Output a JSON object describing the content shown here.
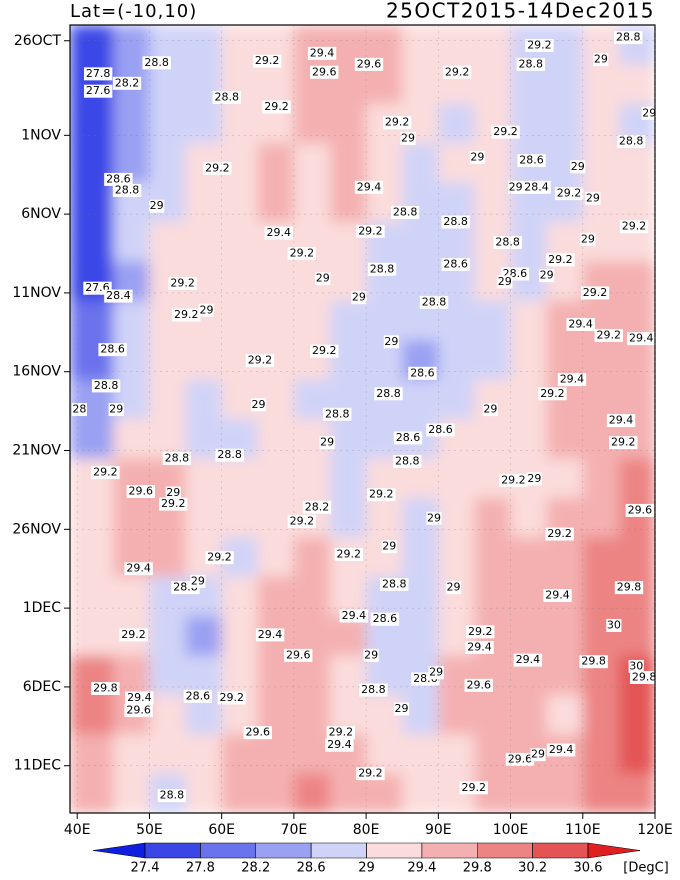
{
  "chart_data": {
    "type": "heatmap",
    "title_left": "Lat=(-10,10)",
    "title_right": "25OCT2015-14Dec2015",
    "xlim": [
      39,
      120
    ],
    "xticks": [
      {
        "value": 40,
        "label": "40E"
      },
      {
        "value": 50,
        "label": "50E"
      },
      {
        "value": 60,
        "label": "60E"
      },
      {
        "value": 70,
        "label": "70E"
      },
      {
        "value": 80,
        "label": "80E"
      },
      {
        "value": 90,
        "label": "90E"
      },
      {
        "value": 100,
        "label": "100E"
      },
      {
        "value": 110,
        "label": "110E"
      },
      {
        "value": 120,
        "label": "120E"
      }
    ],
    "ylim": [
      0,
      50
    ],
    "y_inverted": true,
    "yticks": [
      {
        "value": 1,
        "label": "26OCT"
      },
      {
        "value": 7,
        "label": "1NOV"
      },
      {
        "value": 12,
        "label": "6NOV"
      },
      {
        "value": 17,
        "label": "11NOV"
      },
      {
        "value": 22,
        "label": "16NOV"
      },
      {
        "value": 27,
        "label": "21NOV"
      },
      {
        "value": 32,
        "label": "26NOV"
      },
      {
        "value": 37,
        "label": "1DEC"
      },
      {
        "value": 42,
        "label": "6DEC"
      },
      {
        "value": 47,
        "label": "11DEC"
      }
    ],
    "lon_edges": [
      39,
      45,
      50,
      55,
      60,
      65,
      70,
      75,
      80,
      85,
      90,
      95,
      100,
      105,
      110,
      115,
      120
    ],
    "day_edges": [
      0,
      2.5,
      5,
      7.5,
      10,
      12.5,
      15,
      17.5,
      20,
      22.5,
      25,
      27.5,
      30,
      32.5,
      35,
      37.5,
      40,
      42.5,
      45,
      47.5,
      50
    ],
    "values": [
      [
        27.6,
        28.2,
        28.8,
        28.8,
        29.0,
        29.2,
        29.4,
        29.6,
        29.4,
        29.2,
        29.2,
        29.0,
        28.8,
        28.6,
        29.2,
        28.8
      ],
      [
        27.6,
        28.2,
        28.6,
        28.8,
        29.0,
        29.2,
        29.4,
        29.6,
        29.4,
        29.2,
        29.0,
        29.2,
        28.8,
        28.8,
        29.0,
        29.0
      ],
      [
        27.6,
        28.4,
        28.8,
        28.9,
        29.0,
        29.2,
        29.4,
        29.6,
        29.2,
        29.0,
        28.9,
        29.2,
        28.6,
        28.8,
        29.0,
        28.8
      ],
      [
        27.6,
        28.4,
        28.8,
        29.0,
        29.2,
        29.4,
        29.2,
        29.6,
        29.2,
        28.8,
        29.0,
        29.0,
        28.6,
        28.6,
        29.2,
        29.0
      ],
      [
        27.4,
        28.6,
        28.9,
        29.0,
        29.2,
        29.4,
        29.2,
        29.4,
        29.2,
        28.8,
        28.8,
        29.0,
        28.6,
        28.8,
        29.2,
        29.2
      ],
      [
        27.6,
        28.6,
        29.0,
        29.2,
        29.0,
        29.2,
        29.2,
        29.2,
        28.8,
        28.8,
        28.6,
        29.0,
        28.6,
        29.0,
        29.2,
        29.2
      ],
      [
        27.6,
        28.4,
        29.0,
        29.2,
        29.2,
        29.0,
        29.2,
        29.0,
        28.8,
        28.8,
        28.6,
        29.0,
        28.8,
        29.2,
        29.4,
        29.4
      ],
      [
        28.0,
        28.6,
        29.0,
        29.2,
        29.0,
        29.0,
        29.2,
        28.8,
        28.8,
        28.6,
        28.6,
        28.8,
        29.0,
        29.4,
        29.6,
        29.4
      ],
      [
        28.0,
        28.8,
        29.0,
        29.2,
        29.0,
        29.2,
        29.0,
        28.8,
        28.6,
        28.4,
        28.8,
        28.8,
        29.2,
        29.4,
        29.6,
        29.4
      ],
      [
        28.2,
        28.8,
        29.0,
        28.8,
        29.0,
        29.0,
        28.8,
        28.8,
        28.6,
        28.6,
        28.8,
        29.0,
        29.2,
        29.4,
        29.4,
        29.6
      ],
      [
        28.4,
        29.2,
        29.0,
        28.8,
        28.8,
        29.0,
        29.0,
        28.6,
        28.8,
        28.8,
        29.0,
        29.2,
        29.2,
        29.4,
        29.6,
        29.6
      ],
      [
        29.0,
        29.6,
        29.4,
        29.0,
        29.0,
        29.0,
        29.2,
        28.8,
        29.0,
        29.0,
        29.2,
        29.2,
        29.0,
        29.2,
        29.6,
        29.8
      ],
      [
        29.2,
        29.6,
        29.4,
        29.0,
        29.0,
        29.2,
        29.2,
        28.8,
        29.0,
        28.8,
        29.0,
        29.4,
        29.2,
        29.4,
        29.6,
        29.8
      ],
      [
        29.2,
        29.4,
        29.6,
        29.0,
        28.8,
        29.2,
        29.4,
        29.0,
        29.0,
        28.8,
        29.0,
        29.4,
        29.6,
        29.6,
        29.8,
        29.8
      ],
      [
        29.0,
        29.2,
        28.8,
        28.6,
        29.0,
        29.4,
        29.4,
        29.2,
        28.8,
        28.8,
        29.0,
        29.4,
        29.6,
        29.6,
        30.0,
        29.8
      ],
      [
        29.2,
        29.0,
        28.6,
        28.4,
        29.0,
        29.4,
        29.6,
        29.4,
        28.8,
        28.8,
        29.2,
        29.4,
        29.6,
        29.6,
        30.0,
        30.0
      ],
      [
        29.8,
        29.4,
        28.8,
        28.6,
        29.0,
        29.4,
        29.6,
        29.2,
        28.8,
        28.8,
        29.4,
        29.6,
        29.4,
        29.6,
        30.0,
        30.2
      ],
      [
        29.8,
        29.6,
        29.0,
        28.8,
        29.2,
        29.6,
        29.4,
        29.2,
        29.0,
        28.8,
        29.6,
        29.6,
        29.4,
        29.2,
        30.0,
        30.2
      ],
      [
        29.6,
        29.2,
        29.0,
        29.0,
        29.4,
        29.6,
        29.6,
        29.4,
        29.2,
        29.0,
        29.2,
        29.6,
        29.6,
        29.4,
        29.8,
        30.2
      ],
      [
        29.4,
        29.0,
        28.8,
        29.2,
        29.4,
        29.4,
        29.8,
        29.6,
        29.4,
        29.2,
        29.2,
        29.4,
        29.6,
        29.6,
        29.8,
        30.0
      ]
    ],
    "levels": [
      27.4,
      27.8,
      28.2,
      28.6,
      29,
      29.4,
      29.8,
      30.2,
      30.6
    ],
    "colors": [
      "#0f1ee0",
      "#3a46e6",
      "#6a72ec",
      "#9aa0f2",
      "#d0d3f8",
      "#fbdcdc",
      "#f4b0b0",
      "#ec8484",
      "#e45454",
      "#e02020"
    ],
    "colorbar_unit": "[DegC]",
    "contour_labels": [
      {
        "lon": 42.9,
        "day": 3.1,
        "value": 27.8
      },
      {
        "lon": 42.9,
        "day": 4.2,
        "value": 27.6
      },
      {
        "lon": 46.9,
        "day": 3.7,
        "value": 28.2
      },
      {
        "lon": 51.0,
        "day": 2.4,
        "value": 28.8
      },
      {
        "lon": 60.7,
        "day": 4.6,
        "value": 28.8
      },
      {
        "lon": 66.3,
        "day": 2.3,
        "value": 29.2
      },
      {
        "lon": 73.9,
        "day": 1.8,
        "value": 29.4
      },
      {
        "lon": 74.2,
        "day": 3.0,
        "value": 29.6
      },
      {
        "lon": 80.4,
        "day": 2.5,
        "value": 29.6
      },
      {
        "lon": 67.6,
        "day": 5.2,
        "value": 29.2
      },
      {
        "lon": 92.6,
        "day": 3.0,
        "value": 29.2
      },
      {
        "lon": 104.0,
        "day": 1.3,
        "value": 29.2
      },
      {
        "lon": 102.8,
        "day": 2.5,
        "value": 28.8
      },
      {
        "lon": 112.5,
        "day": 2.2,
        "value": 29
      },
      {
        "lon": 116.3,
        "day": 0.8,
        "value": 28.8
      },
      {
        "lon": 119.2,
        "day": 5.6,
        "value": 29
      },
      {
        "lon": 84.3,
        "day": 6.2,
        "value": 29.2
      },
      {
        "lon": 85.8,
        "day": 7.2,
        "value": 29
      },
      {
        "lon": 99.3,
        "day": 6.8,
        "value": 29.2
      },
      {
        "lon": 116.7,
        "day": 7.4,
        "value": 28.8
      },
      {
        "lon": 59.4,
        "day": 9.1,
        "value": 29.2
      },
      {
        "lon": 95.4,
        "day": 8.4,
        "value": 29
      },
      {
        "lon": 102.9,
        "day": 8.6,
        "value": 28.6
      },
      {
        "lon": 109.3,
        "day": 9.0,
        "value": 29
      },
      {
        "lon": 45.7,
        "day": 9.8,
        "value": 28.6
      },
      {
        "lon": 46.9,
        "day": 10.5,
        "value": 28.8
      },
      {
        "lon": 51.0,
        "day": 11.5,
        "value": 29
      },
      {
        "lon": 80.4,
        "day": 10.3,
        "value": 29.4
      },
      {
        "lon": 100.7,
        "day": 10.3,
        "value": 29
      },
      {
        "lon": 103.6,
        "day": 10.3,
        "value": 28.4
      },
      {
        "lon": 108.1,
        "day": 10.7,
        "value": 29.2
      },
      {
        "lon": 85.4,
        "day": 11.9,
        "value": 28.8
      },
      {
        "lon": 92.4,
        "day": 12.5,
        "value": 28.8
      },
      {
        "lon": 111.4,
        "day": 11.0,
        "value": 29
      },
      {
        "lon": 117.1,
        "day": 12.8,
        "value": 29.2
      },
      {
        "lon": 67.9,
        "day": 13.2,
        "value": 29.4
      },
      {
        "lon": 80.6,
        "day": 13.1,
        "value": 29.2
      },
      {
        "lon": 99.6,
        "day": 13.8,
        "value": 28.8
      },
      {
        "lon": 110.7,
        "day": 13.6,
        "value": 29
      },
      {
        "lon": 71.1,
        "day": 14.5,
        "value": 29.2
      },
      {
        "lon": 82.2,
        "day": 15.5,
        "value": 28.8
      },
      {
        "lon": 92.4,
        "day": 15.2,
        "value": 28.6
      },
      {
        "lon": 106.9,
        "day": 14.9,
        "value": 29.2
      },
      {
        "lon": 74.0,
        "day": 16.1,
        "value": 29
      },
      {
        "lon": 100.6,
        "day": 15.8,
        "value": 28.6
      },
      {
        "lon": 105.0,
        "day": 15.9,
        "value": 29
      },
      {
        "lon": 99.2,
        "day": 16.3,
        "value": 29
      },
      {
        "lon": 42.8,
        "day": 16.7,
        "value": 27.6
      },
      {
        "lon": 45.7,
        "day": 17.2,
        "value": 28.4
      },
      {
        "lon": 54.6,
        "day": 16.4,
        "value": 29.2
      },
      {
        "lon": 79.0,
        "day": 17.3,
        "value": 29
      },
      {
        "lon": 89.4,
        "day": 17.6,
        "value": 28.8
      },
      {
        "lon": 111.7,
        "day": 17.0,
        "value": 29.2
      },
      {
        "lon": 55.1,
        "day": 18.4,
        "value": 29.2
      },
      {
        "lon": 57.9,
        "day": 18.1,
        "value": 29
      },
      {
        "lon": 109.7,
        "day": 19.0,
        "value": 29.4
      },
      {
        "lon": 113.6,
        "day": 19.7,
        "value": 29.2
      },
      {
        "lon": 118.1,
        "day": 19.9,
        "value": 29.4
      },
      {
        "lon": 44.9,
        "day": 20.6,
        "value": 28.6
      },
      {
        "lon": 74.2,
        "day": 20.7,
        "value": 29.2
      },
      {
        "lon": 83.5,
        "day": 20.1,
        "value": 29
      },
      {
        "lon": 65.3,
        "day": 21.3,
        "value": 29.2
      },
      {
        "lon": 87.8,
        "day": 22.1,
        "value": 28.6
      },
      {
        "lon": 44.0,
        "day": 22.9,
        "value": 28.8
      },
      {
        "lon": 108.5,
        "day": 22.5,
        "value": 29.4
      },
      {
        "lon": 105.8,
        "day": 23.4,
        "value": 29.2
      },
      {
        "lon": 40.3,
        "day": 24.4,
        "value": 28
      },
      {
        "lon": 45.4,
        "day": 24.4,
        "value": 29
      },
      {
        "lon": 65.1,
        "day": 24.1,
        "value": 29
      },
      {
        "lon": 76.0,
        "day": 24.7,
        "value": 28.8
      },
      {
        "lon": 83.1,
        "day": 23.4,
        "value": 28.8
      },
      {
        "lon": 97.2,
        "day": 24.4,
        "value": 29
      },
      {
        "lon": 115.3,
        "day": 25.1,
        "value": 29.4
      },
      {
        "lon": 85.8,
        "day": 26.2,
        "value": 28.6
      },
      {
        "lon": 90.3,
        "day": 25.7,
        "value": 28.6
      },
      {
        "lon": 74.6,
        "day": 26.5,
        "value": 29
      },
      {
        "lon": 53.8,
        "day": 27.5,
        "value": 28.8
      },
      {
        "lon": 61.1,
        "day": 27.3,
        "value": 28.8
      },
      {
        "lon": 85.7,
        "day": 27.7,
        "value": 28.8
      },
      {
        "lon": 115.6,
        "day": 26.5,
        "value": 29.2
      },
      {
        "lon": 43.9,
        "day": 28.4,
        "value": 29.2
      },
      {
        "lon": 103.3,
        "day": 28.8,
        "value": 29
      },
      {
        "lon": 100.4,
        "day": 28.9,
        "value": 29.2
      },
      {
        "lon": 48.8,
        "day": 29.6,
        "value": 29.6
      },
      {
        "lon": 53.3,
        "day": 29.7,
        "value": 29
      },
      {
        "lon": 53.3,
        "day": 30.4,
        "value": 29.2
      },
      {
        "lon": 82.1,
        "day": 29.8,
        "value": 29.2
      },
      {
        "lon": 73.2,
        "day": 30.6,
        "value": 28.2
      },
      {
        "lon": 71.1,
        "day": 31.5,
        "value": 29.2
      },
      {
        "lon": 89.4,
        "day": 31.3,
        "value": 29
      },
      {
        "lon": 117.9,
        "day": 30.8,
        "value": 29.6
      },
      {
        "lon": 77.6,
        "day": 33.6,
        "value": 29.2
      },
      {
        "lon": 59.7,
        "day": 33.8,
        "value": 29.2
      },
      {
        "lon": 83.2,
        "day": 33.1,
        "value": 29
      },
      {
        "lon": 106.8,
        "day": 32.3,
        "value": 29.2
      },
      {
        "lon": 48.5,
        "day": 34.5,
        "value": 29.4
      },
      {
        "lon": 55.0,
        "day": 35.7,
        "value": 28.8
      },
      {
        "lon": 56.7,
        "day": 35.3,
        "value": 29
      },
      {
        "lon": 83.9,
        "day": 35.5,
        "value": 28.8
      },
      {
        "lon": 92.1,
        "day": 35.7,
        "value": 29
      },
      {
        "lon": 106.5,
        "day": 36.2,
        "value": 29.4
      },
      {
        "lon": 116.4,
        "day": 35.7,
        "value": 29.8
      },
      {
        "lon": 78.3,
        "day": 37.5,
        "value": 29.4
      },
      {
        "lon": 82.6,
        "day": 37.7,
        "value": 28.6
      },
      {
        "lon": 47.8,
        "day": 38.7,
        "value": 29.2
      },
      {
        "lon": 66.7,
        "day": 38.7,
        "value": 29.4
      },
      {
        "lon": 95.8,
        "day": 38.5,
        "value": 29.2
      },
      {
        "lon": 95.7,
        "day": 39.5,
        "value": 29.4
      },
      {
        "lon": 114.3,
        "day": 38.1,
        "value": 30
      },
      {
        "lon": 70.6,
        "day": 40.0,
        "value": 29.6
      },
      {
        "lon": 80.7,
        "day": 40.0,
        "value": 29
      },
      {
        "lon": 102.4,
        "day": 40.3,
        "value": 29.4
      },
      {
        "lon": 111.5,
        "day": 40.4,
        "value": 29.8
      },
      {
        "lon": 117.4,
        "day": 40.7,
        "value": 30
      },
      {
        "lon": 118.5,
        "day": 41.4,
        "value": 29.8
      },
      {
        "lon": 43.9,
        "day": 42.1,
        "value": 29.8
      },
      {
        "lon": 48.6,
        "day": 42.7,
        "value": 29.4
      },
      {
        "lon": 48.5,
        "day": 43.5,
        "value": 29.6
      },
      {
        "lon": 56.7,
        "day": 42.6,
        "value": 28.6
      },
      {
        "lon": 61.4,
        "day": 42.7,
        "value": 29.2
      },
      {
        "lon": 81.0,
        "day": 42.2,
        "value": 28.8
      },
      {
        "lon": 88.2,
        "day": 41.5,
        "value": 28.6
      },
      {
        "lon": 89.7,
        "day": 41.1,
        "value": 29
      },
      {
        "lon": 95.6,
        "day": 41.9,
        "value": 29.6
      },
      {
        "lon": 84.9,
        "day": 43.4,
        "value": 29
      },
      {
        "lon": 65.0,
        "day": 44.9,
        "value": 29.6
      },
      {
        "lon": 76.5,
        "day": 44.9,
        "value": 29.2
      },
      {
        "lon": 76.3,
        "day": 45.7,
        "value": 29.4
      },
      {
        "lon": 101.3,
        "day": 46.6,
        "value": 29.6
      },
      {
        "lon": 103.8,
        "day": 46.3,
        "value": 29
      },
      {
        "lon": 107.0,
        "day": 46.0,
        "value": 29.4
      },
      {
        "lon": 80.6,
        "day": 47.5,
        "value": 29.2
      },
      {
        "lon": 94.9,
        "day": 48.4,
        "value": 29.2
      },
      {
        "lon": 53.1,
        "day": 48.9,
        "value": 28.8
      }
    ]
  }
}
